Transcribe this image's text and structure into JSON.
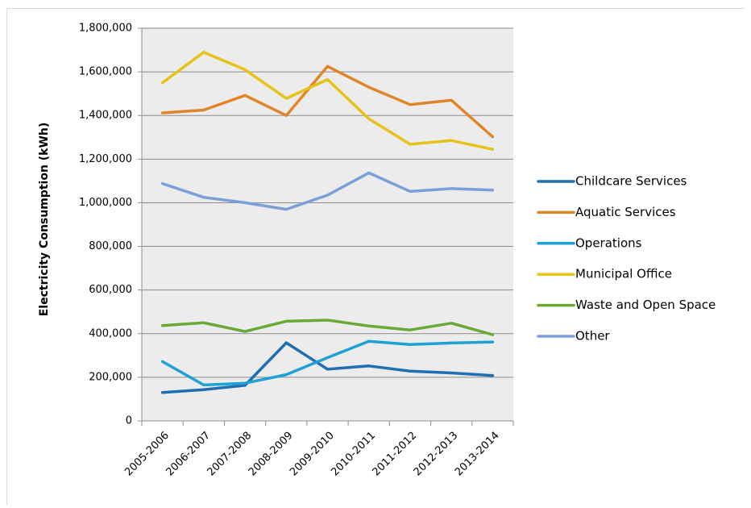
{
  "chart_data": {
    "type": "line",
    "title": "",
    "xlabel": "",
    "ylabel": "Electricity Consumption (kWh)",
    "categories": [
      "2005-2006",
      "2006-2007",
      "2007-2008",
      "2008-2009",
      "2009-2010",
      "2010-2011",
      "2011-2012",
      "2012-2013",
      "2013-2014"
    ],
    "ylim": [
      0,
      1800000
    ],
    "yticks": [
      0,
      200000,
      400000,
      600000,
      800000,
      1000000,
      1200000,
      1400000,
      1600000,
      1800000
    ],
    "ytick_labels": [
      "0",
      "200,000",
      "400,000",
      "600,000",
      "800,000",
      "1,000,000",
      "1,200,000",
      "1,400,000",
      "1,600,000",
      "1,800,000"
    ],
    "grid": true,
    "legend_position": "right",
    "plot_background": "#ececec",
    "series": [
      {
        "name": "Childcare Services",
        "color": "#1f6fb2",
        "values": [
          130000,
          143000,
          163000,
          358000,
          237000,
          252000,
          228000,
          220000,
          208000
        ]
      },
      {
        "name": "Aquatic Services",
        "color": "#e0862a",
        "values": [
          1412000,
          1425000,
          1492000,
          1400000,
          1625000,
          1530000,
          1450000,
          1470000,
          1302000
        ]
      },
      {
        "name": "Operations",
        "color": "#1ea1d6",
        "values": [
          272000,
          165000,
          173000,
          212000,
          290000,
          365000,
          350000,
          357000,
          362000
        ]
      },
      {
        "name": "Municipal Office",
        "color": "#e6c31a",
        "values": [
          1550000,
          1690000,
          1610000,
          1478000,
          1565000,
          1385000,
          1268000,
          1285000,
          1245000
        ]
      },
      {
        "name": "Waste and Open Space",
        "color": "#6aa935",
        "values": [
          437000,
          450000,
          410000,
          457000,
          462000,
          435000,
          417000,
          448000,
          395000
        ]
      },
      {
        "name": "Other",
        "color": "#7b9fd6",
        "values": [
          1088000,
          1025000,
          1000000,
          970000,
          1035000,
          1137000,
          1052000,
          1065000,
          1058000
        ]
      }
    ]
  }
}
